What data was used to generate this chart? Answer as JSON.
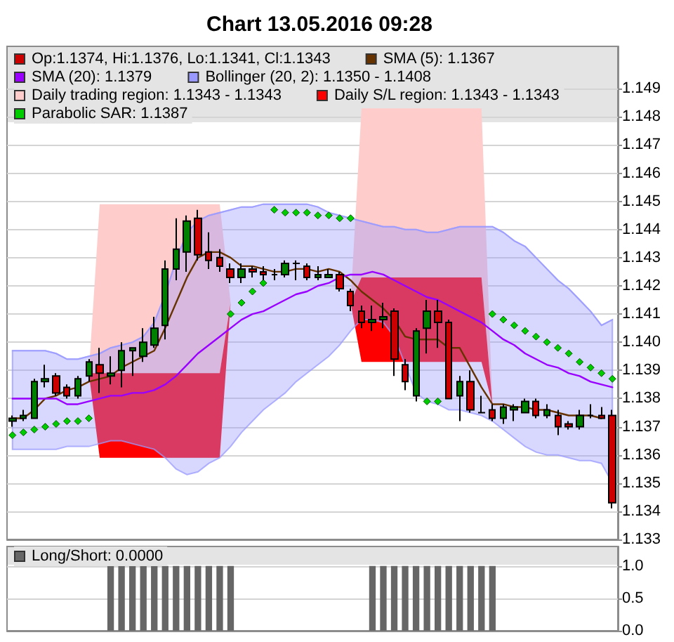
{
  "chart_data": [
    {
      "type": "candlestick",
      "title": "Chart 13.05.2016 09:28",
      "categories": [
        null,
        null,
        null,
        null,
        null,
        null,
        null,
        null,
        null,
        null,
        null,
        null,
        null,
        null,
        null,
        null,
        null,
        null,
        null,
        null,
        null,
        null,
        null,
        null,
        null,
        null,
        null,
        null,
        null,
        null,
        null,
        null,
        null,
        null,
        null,
        null,
        null,
        null,
        null,
        null,
        null,
        null,
        null,
        null,
        null,
        null,
        null,
        null,
        null,
        null,
        null,
        null,
        null,
        null,
        null,
        null
      ],
      "series": [
        {
          "name": "Op:1.1374, Hi:1.1376, Lo:1.1341, Cl:1.1343",
          "colors": [
            "#008000",
            "#008000",
            "#008000",
            "#008000",
            "#cc0000",
            "#cc0000",
            "#008000",
            "#008000",
            "#cc0000",
            "#008000",
            "#008000",
            "#008000",
            "#008000",
            "#008000",
            "#008000",
            "#008000",
            "#008000",
            "#cc0000",
            "#cc0000",
            "#cc0000",
            "#cc0000",
            "#008000",
            "#cc0000",
            "#cc0000",
            "#000000",
            "#008000",
            "#000000",
            "#cc0000",
            "#008000",
            "#008000",
            "#cc0000",
            "#cc0000",
            "#cc0000",
            "#008000",
            "#008000",
            "#cc0000",
            "#cc0000",
            "#008000",
            "#008000",
            "#cc0000",
            "#cc0000",
            "#008000",
            "#cc0000",
            "#000000",
            "#cc0000",
            "#008000",
            "#008000",
            "#008000",
            "#cc0000",
            "#008000",
            "#cc0000",
            "#cc0000",
            "#008000",
            "#000000",
            "#cc0000",
            "#cc0000"
          ],
          "ohlc": [
            [
              1.1372,
              1.1374,
              1.137,
              1.1373
            ],
            [
              1.1373,
              1.1376,
              1.1372,
              1.1374
            ],
            [
              1.1373,
              1.1387,
              1.1373,
              1.1386
            ],
            [
              1.1386,
              1.1392,
              1.1384,
              1.1387
            ],
            [
              1.1388,
              1.1389,
              1.1381,
              1.1382
            ],
            [
              1.1384,
              1.1385,
              1.138,
              1.1381
            ],
            [
              1.1381,
              1.1388,
              1.138,
              1.1387
            ],
            [
              1.1388,
              1.1394,
              1.1386,
              1.1393
            ],
            [
              1.1392,
              1.1398,
              1.1382,
              1.1389
            ],
            [
              1.1388,
              1.1395,
              1.1385,
              1.1389
            ],
            [
              1.139,
              1.14,
              1.1384,
              1.1397
            ],
            [
              1.1397,
              1.1398,
              1.1388,
              1.1398
            ],
            [
              1.1395,
              1.1405,
              1.1393,
              1.14
            ],
            [
              1.1399,
              1.1409,
              1.1398,
              1.1405
            ],
            [
              1.1406,
              1.1429,
              1.1401,
              1.1426
            ],
            [
              1.1426,
              1.1444,
              1.1422,
              1.1433
            ],
            [
              1.1432,
              1.1445,
              1.1425,
              1.1443
            ],
            [
              1.1444,
              1.1447,
              1.1429,
              1.1431
            ],
            [
              1.1432,
              1.1439,
              1.1426,
              1.1429
            ],
            [
              1.143,
              1.1433,
              1.1425,
              1.1427
            ],
            [
              1.1426,
              1.1428,
              1.1421,
              1.1423
            ],
            [
              1.1423,
              1.1428,
              1.1421,
              1.1426
            ],
            [
              1.1426,
              1.1427,
              1.1423,
              1.1425
            ],
            [
              1.1425,
              1.1427,
              1.1422,
              1.1424
            ],
            [
              1.1424,
              1.1426,
              1.1422,
              1.1424
            ],
            [
              1.1424,
              1.1429,
              1.1423,
              1.1428
            ],
            [
              1.1428,
              1.1429,
              1.1422,
              1.1428
            ],
            [
              1.1427,
              1.1428,
              1.1422,
              1.1423
            ],
            [
              1.1423,
              1.1427,
              1.1422,
              1.1424
            ],
            [
              1.1423,
              1.1426,
              1.1423,
              1.1424
            ],
            [
              1.1424,
              1.1425,
              1.1418,
              1.1419
            ],
            [
              1.1418,
              1.1419,
              1.1411,
              1.1413
            ],
            [
              1.1411,
              1.1413,
              1.1405,
              1.1407
            ],
            [
              1.1407,
              1.1413,
              1.1404,
              1.1408
            ],
            [
              1.1408,
              1.1414,
              1.1405,
              1.1409
            ],
            [
              1.1411,
              1.1412,
              1.1388,
              1.1394
            ],
            [
              1.1392,
              1.1394,
              1.1383,
              1.1386
            ],
            [
              1.1381,
              1.1405,
              1.1379,
              1.1404
            ],
            [
              1.1405,
              1.1415,
              1.1396,
              1.1411
            ],
            [
              1.1411,
              1.1415,
              1.1398,
              1.1407
            ],
            [
              1.1407,
              1.1408,
              1.138,
              1.138
            ],
            [
              1.1381,
              1.1388,
              1.1372,
              1.1386
            ],
            [
              1.1386,
              1.139,
              1.1375,
              1.1376
            ],
            [
              1.1375,
              1.1381,
              1.1375,
              1.1375
            ],
            [
              1.1376,
              1.1378,
              1.1372,
              1.1373
            ],
            [
              1.1373,
              1.1378,
              1.1371,
              1.1377
            ],
            [
              1.1376,
              1.1378,
              1.1372,
              1.1377
            ],
            [
              1.1375,
              1.138,
              1.1375,
              1.1379
            ],
            [
              1.1379,
              1.138,
              1.1373,
              1.1374
            ],
            [
              1.1374,
              1.1378,
              1.1373,
              1.1376
            ],
            [
              1.1374,
              1.1376,
              1.1367,
              1.137
            ],
            [
              1.1371,
              1.1372,
              1.1369,
              1.137
            ],
            [
              1.137,
              1.1376,
              1.1369,
              1.1374
            ],
            [
              1.1374,
              1.1378,
              1.1373,
              1.1374
            ],
            [
              1.1374,
              1.1377,
              1.1373,
              1.1373
            ],
            [
              1.1374,
              1.1376,
              1.1341,
              1.1343
            ]
          ]
        },
        {
          "name": "SMA (5): 1.1367",
          "type": "line",
          "color": "#663300",
          "values": [
            1.1373,
            1.1373,
            1.1376,
            1.138,
            1.1381,
            1.1383,
            1.1384,
            1.1386,
            1.1387,
            1.1388,
            1.1391,
            1.1393,
            1.1395,
            1.1397,
            1.1405,
            1.1414,
            1.1423,
            1.143,
            1.1432,
            1.1432,
            1.143,
            1.1427,
            1.1427,
            1.1426,
            1.1425,
            1.1425,
            1.1426,
            1.1426,
            1.1425,
            1.1426,
            1.1425,
            1.1422,
            1.1418,
            1.1415,
            1.1412,
            1.1408,
            1.1402,
            1.1401,
            1.1401,
            1.1401,
            1.1398,
            1.1398,
            1.1391,
            1.1384,
            1.1378,
            1.1378,
            1.1377,
            1.1377,
            1.1376,
            1.1376,
            1.1375,
            1.1374,
            1.1374,
            1.1374,
            1.1373,
            null
          ]
        },
        {
          "name": "SMA (20): 1.1379",
          "type": "line",
          "color": "#9900ff",
          "values": [
            1.138,
            1.138,
            1.138,
            1.138,
            1.138,
            1.1378,
            1.1378,
            1.1379,
            1.138,
            1.1381,
            1.1381,
            1.1382,
            1.1382,
            1.1383,
            1.1385,
            1.1388,
            1.1392,
            1.1396,
            1.1399,
            1.1402,
            1.1405,
            1.1408,
            1.141,
            1.1411,
            1.1413,
            1.1415,
            1.1417,
            1.1418,
            1.142,
            1.1421,
            1.1423,
            1.1424,
            1.1424,
            1.1425,
            1.1424,
            1.1422,
            1.142,
            1.1418,
            1.1416,
            1.1415,
            1.1413,
            1.1411,
            1.1409,
            1.1407,
            1.1404,
            1.1401,
            1.1399,
            1.1396,
            1.1394,
            1.1392,
            1.1391,
            1.1389,
            1.1388,
            1.1386,
            1.1385,
            1.1384
          ]
        },
        {
          "name": "Bollinger (20, 2): 1.1350 - 1.1408",
          "type": "line",
          "color": "#9999ff",
          "values": [
            1.1397,
            1.1397,
            1.1397,
            1.1397,
            1.1396,
            1.1394,
            1.1394,
            1.1395,
            1.1396,
            1.1398,
            1.1399,
            1.14,
            1.1402,
            1.1407,
            1.1417,
            1.1429,
            1.1439,
            1.1443,
            1.1445,
            1.1446,
            1.1447,
            1.1448,
            1.1448,
            1.1449,
            1.1449,
            1.1449,
            1.1449,
            1.1449,
            1.1448,
            1.1446,
            1.1445,
            1.1444,
            1.1443,
            1.1442,
            1.1441,
            1.1441,
            1.144,
            1.144,
            1.1439,
            1.1439,
            1.144,
            1.1441,
            1.1441,
            1.1441,
            1.1441,
            1.1439,
            1.1436,
            1.1434,
            1.143,
            1.1426,
            1.1422,
            1.1419,
            1.1415,
            1.1411,
            1.1406,
            1.1408
          ],
          "upper": [
            1.1397,
            1.1397,
            1.1397,
            1.1397,
            1.1396,
            1.1394,
            1.1394,
            1.1395,
            1.1396,
            1.1398,
            1.1399,
            1.14,
            1.1402,
            1.1407,
            1.1417,
            1.1429,
            1.1439,
            1.1443,
            1.1445,
            1.1446,
            1.1447,
            1.1448,
            1.1448,
            1.1449,
            1.1449,
            1.1449,
            1.1449,
            1.1449,
            1.1448,
            1.1446,
            1.1445,
            1.1444,
            1.1443,
            1.1442,
            1.1441,
            1.1441,
            1.144,
            1.144,
            1.1439,
            1.1439,
            1.144,
            1.1441,
            1.1441,
            1.1441,
            1.1441,
            1.1439,
            1.1436,
            1.1434,
            1.143,
            1.1426,
            1.1422,
            1.1419,
            1.1415,
            1.1411,
            1.1406,
            1.1408
          ],
          "lower": [
            1.1362,
            1.1362,
            1.1362,
            1.1362,
            1.1362,
            1.1363,
            1.1363,
            1.1363,
            1.1364,
            1.1365,
            1.1365,
            1.1364,
            1.1363,
            1.1362,
            1.1359,
            1.1355,
            1.1353,
            1.1354,
            1.1357,
            1.1359,
            1.1363,
            1.1368,
            1.1372,
            1.1376,
            1.1379,
            1.1382,
            1.1386,
            1.1389,
            1.1392,
            1.1395,
            1.1399,
            1.1404,
            1.1408,
            1.1408,
            1.1407,
            1.1402,
            1.1392,
            1.1382,
            1.1379,
            1.1378,
            1.1376,
            1.1376,
            1.1375,
            1.1374,
            1.1372,
            1.1369,
            1.1366,
            1.1363,
            1.1361,
            1.136,
            1.136,
            1.1359,
            1.1358,
            1.1358,
            1.1357,
            1.135
          ]
        },
        {
          "name": "Daily trading region: 1.1343 - 1.1343",
          "type": "area",
          "color": "#ffcccc",
          "values": [
            null,
            null,
            null,
            null,
            null,
            null,
            null,
            null,
            null,
            null,
            null,
            null,
            null,
            null,
            null,
            null,
            null,
            null,
            null,
            null,
            null,
            null,
            null,
            null,
            null,
            null,
            null,
            null,
            null,
            null,
            null,
            null,
            null,
            null,
            null,
            null,
            null,
            null,
            null,
            null,
            null,
            null,
            null,
            null,
            null,
            null,
            null,
            null,
            null,
            null,
            null,
            null,
            null,
            null,
            null,
            null
          ],
          "upper": [
            null,
            null,
            null,
            null,
            null,
            null,
            null,
            1.1389,
            1.1449,
            1.1449,
            1.1449,
            1.1449,
            1.1449,
            1.1449,
            1.1449,
            1.1449,
            1.1449,
            1.1449,
            1.1449,
            1.1449,
            1.1414,
            null,
            null,
            null,
            null,
            null,
            null,
            null,
            null,
            null,
            null,
            1.1414,
            1.1483,
            1.1483,
            1.1483,
            1.1483,
            1.1483,
            1.1483,
            1.1483,
            1.1483,
            1.1483,
            1.1483,
            1.1483,
            1.1483,
            1.1378,
            null,
            null,
            null,
            null,
            null,
            null,
            null,
            null,
            null,
            null,
            null
          ],
          "lower": [
            null,
            null,
            null,
            null,
            null,
            null,
            null,
            1.1389,
            1.1389,
            1.1389,
            1.1389,
            1.1389,
            1.1389,
            1.1389,
            1.1389,
            1.1389,
            1.1389,
            1.1389,
            1.1389,
            1.1389,
            1.1414,
            null,
            null,
            null,
            null,
            null,
            null,
            null,
            null,
            null,
            null,
            1.1414,
            1.1423,
            1.1423,
            1.1423,
            1.1423,
            1.1423,
            1.1423,
            1.1423,
            1.1423,
            1.1423,
            1.1423,
            1.1423,
            1.1423,
            1.1378,
            null,
            null,
            null,
            null,
            null,
            null,
            null,
            null,
            null,
            null,
            null
          ]
        },
        {
          "name": "Daily S/L region: 1.1343 - 1.1343",
          "type": "area",
          "color": "#ff0000",
          "values": [
            null,
            null,
            null,
            null,
            null,
            null,
            null,
            null,
            null,
            null,
            null,
            null,
            null,
            null,
            null,
            null,
            null,
            null,
            null,
            null,
            null,
            null,
            null,
            null,
            null,
            null,
            null,
            null,
            null,
            null,
            null,
            null,
            null,
            null,
            null,
            null,
            null,
            null,
            null,
            null,
            null,
            null,
            null,
            null,
            null,
            null,
            null,
            null,
            null,
            null,
            null,
            null,
            null,
            null,
            null,
            null
          ],
          "upper": [
            null,
            null,
            null,
            null,
            null,
            null,
            null,
            1.1389,
            1.1389,
            1.1389,
            1.1389,
            1.1389,
            1.1389,
            1.1389,
            1.1389,
            1.1389,
            1.1389,
            1.1389,
            1.1389,
            1.1389,
            1.1414,
            null,
            null,
            null,
            null,
            null,
            null,
            null,
            null,
            null,
            null,
            1.1414,
            1.1423,
            1.1423,
            1.1423,
            1.1423,
            1.1423,
            1.1423,
            1.1423,
            1.1423,
            1.1423,
            1.1423,
            1.1423,
            1.1423,
            1.1378,
            null,
            null,
            null,
            null,
            null,
            null,
            null,
            null,
            null,
            null,
            null
          ],
          "lower": [
            null,
            null,
            null,
            null,
            null,
            null,
            null,
            1.1389,
            1.1359,
            1.1359,
            1.1359,
            1.1359,
            1.1359,
            1.1359,
            1.1359,
            1.1359,
            1.1359,
            1.1359,
            1.1359,
            1.1359,
            1.1414,
            null,
            null,
            null,
            null,
            null,
            null,
            null,
            null,
            null,
            null,
            1.1414,
            1.1393,
            1.1393,
            1.1393,
            1.1393,
            1.1393,
            1.1393,
            1.1393,
            1.1393,
            1.1393,
            1.1393,
            1.1393,
            1.1393,
            1.1378,
            null,
            null,
            null,
            null,
            null,
            null,
            null,
            null,
            null,
            null,
            null
          ]
        },
        {
          "name": "Parabolic SAR: 1.1387",
          "type": "scatter",
          "color": "#00cc00",
          "marker": "diamond",
          "values": [
            1.1367,
            1.1368,
            1.1369,
            1.137,
            1.1371,
            1.1372,
            1.1372,
            1.1373,
            null,
            null,
            null,
            null,
            null,
            null,
            null,
            null,
            null,
            null,
            null,
            null,
            1.141,
            1.1414,
            1.1418,
            1.1421,
            1.1447,
            1.1446,
            1.1446,
            1.1446,
            1.1445,
            1.1445,
            1.1444,
            1.1444,
            null,
            null,
            null,
            null,
            null,
            null,
            1.1379,
            1.1379,
            null,
            null,
            null,
            null,
            1.141,
            1.1408,
            1.1406,
            1.1404,
            1.1402,
            1.14,
            1.1398,
            1.1396,
            1.1393,
            1.1391,
            1.1389,
            1.1387
          ]
        }
      ],
      "ylim": [
        1.133,
        1.1505
      ],
      "yticks": [
        1.133,
        1.134,
        1.135,
        1.136,
        1.137,
        1.138,
        1.139,
        {
          "value": 1.14,
          "label": "1.140"
        },
        1.141,
        1.142,
        1.143,
        1.144,
        1.145,
        1.146,
        1.147,
        1.148,
        1.149
      ],
      "grid": "y",
      "legend": "top left"
    },
    {
      "type": "bar",
      "categories": [
        null,
        null,
        null,
        null,
        null,
        null,
        null,
        null,
        null,
        null,
        null,
        null,
        null,
        null,
        null,
        null,
        null,
        null,
        null,
        null,
        null,
        null,
        null,
        null,
        null,
        null,
        null,
        null,
        null,
        null,
        null,
        null,
        null,
        null,
        null,
        null,
        null,
        null,
        null,
        null,
        null,
        null,
        null,
        null,
        null,
        null,
        null,
        null,
        null,
        null,
        null,
        null,
        null,
        null,
        null,
        null
      ],
      "series": [
        {
          "name": "Long/Short: 0.0000",
          "color": "#666666",
          "values": [
            0,
            0,
            0,
            0,
            0,
            0,
            0,
            0,
            0,
            1,
            1,
            1,
            1,
            1,
            1,
            1,
            1,
            1,
            1,
            1,
            1,
            0,
            0,
            0,
            0,
            0,
            0,
            0,
            0,
            0,
            0,
            0,
            0,
            1,
            1,
            1,
            1,
            1,
            1,
            1,
            1,
            1,
            1,
            1,
            1,
            0,
            0,
            0,
            0,
            0,
            0,
            0,
            0,
            0,
            0,
            0
          ]
        }
      ],
      "ylim": [
        0,
        1.3
      ],
      "yticks": [
        {
          "value": 0,
          "label": "0.0"
        },
        0.5,
        {
          "value": 1,
          "label": "1.0"
        }
      ],
      "grid": "y",
      "legend": "top left"
    }
  ]
}
